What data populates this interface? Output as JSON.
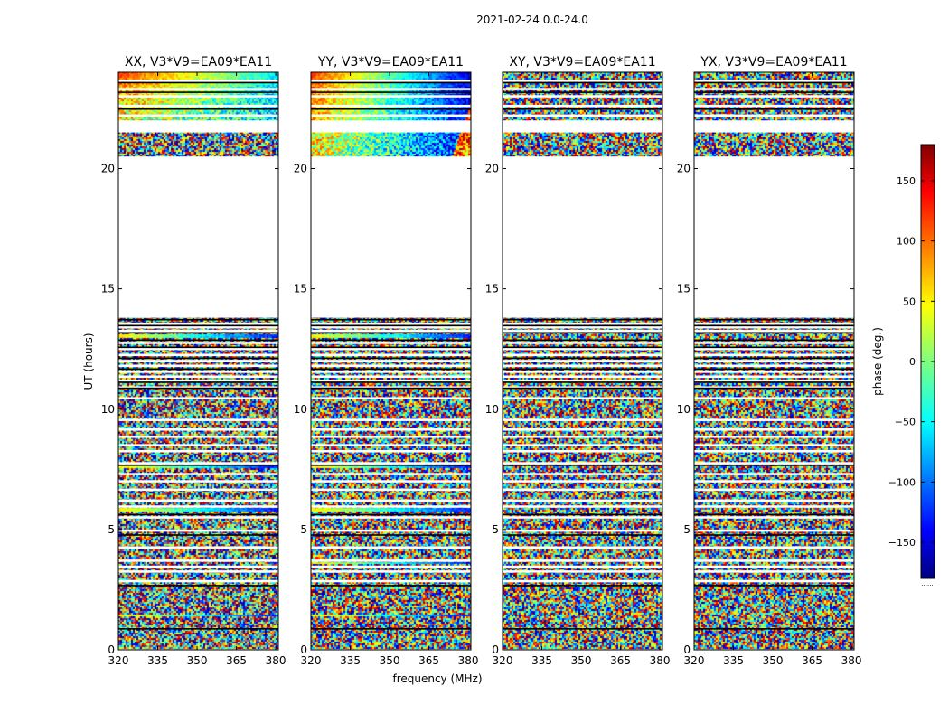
{
  "figure": {
    "suptitle": "2021-02-24 0.0-24.0",
    "colormap": "jet",
    "colorbar": {
      "label": "phase (deg.)",
      "range": [
        -180,
        180
      ],
      "ticks": [
        150,
        100,
        50,
        0,
        -50,
        -100,
        -150
      ],
      "tick_labels": [
        "150",
        "100",
        "50",
        "0",
        "−50",
        "−100",
        "−150"
      ],
      "bottom_note": "......"
    }
  },
  "chart_data": [
    {
      "type": "heatmap",
      "title": "XX, V3*V9=EA09*EA11",
      "xlabel": "",
      "ylabel": "UT (hours)",
      "xlim": [
        320,
        381
      ],
      "ylim": [
        0,
        24
      ],
      "xticks": [
        320,
        335,
        350,
        365,
        380
      ],
      "yticks": [
        0,
        5,
        10,
        15,
        20
      ],
      "value_range": [
        -180,
        180
      ],
      "content": "random phase noise with horizontal flagged (white) gaps; coherent gradient near 21.5-24 h",
      "flagged_hours": [
        [
          13.8,
          20.5
        ],
        [
          21.5,
          22.0
        ],
        [
          0.0,
          0.03
        ]
      ],
      "coherent_rows": [
        [
          1.4,
          1.5
        ],
        [
          5.8,
          5.95
        ],
        [
          7.6,
          7.75
        ],
        [
          13.0,
          13.15
        ]
      ],
      "coherent_region_hours": [
        22.0,
        24.0
      ]
    },
    {
      "type": "heatmap",
      "title": "YY, V3*V9=EA09*EA11",
      "xlabel": "frequency (MHz)",
      "ylabel": "",
      "xlim": [
        320,
        381
      ],
      "ylim": [
        0,
        24
      ],
      "xticks": [
        320,
        335,
        350,
        365,
        380
      ],
      "yticks": [
        0,
        5,
        10,
        15,
        20
      ],
      "value_range": [
        -180,
        180
      ],
      "content": "random phase noise with flagged gaps; strong phase wrap near 20.5-24 h",
      "flagged_hours": [
        [
          13.8,
          20.5
        ],
        [
          21.5,
          22.0
        ],
        [
          0.0,
          0.03
        ]
      ],
      "coherent_rows": [
        [
          1.4,
          1.5
        ],
        [
          3.6,
          3.7
        ],
        [
          5.8,
          5.95
        ],
        [
          7.6,
          7.75
        ],
        [
          13.0,
          13.15
        ]
      ],
      "coherent_region_hours": [
        20.5,
        24.0
      ]
    },
    {
      "type": "heatmap",
      "title": "XY, V3*V9=EA09*EA11",
      "xlabel": "",
      "ylabel": "",
      "xlim": [
        320,
        381
      ],
      "ylim": [
        0,
        24
      ],
      "xticks": [
        320,
        335,
        350,
        365,
        380
      ],
      "yticks": [
        0,
        5,
        10,
        15,
        20
      ],
      "value_range": [
        -180,
        180
      ],
      "content": "random phase noise with flagged gaps",
      "flagged_hours": [
        [
          13.8,
          20.5
        ],
        [
          21.5,
          22.0
        ],
        [
          0.0,
          0.03
        ]
      ],
      "coherent_rows": [],
      "coherent_region_hours": null
    },
    {
      "type": "heatmap",
      "title": "YX, V3*V9=EA09*EA11",
      "xlabel": "",
      "ylabel": "",
      "xlim": [
        320,
        381
      ],
      "ylim": [
        0,
        24
      ],
      "xticks": [
        320,
        335,
        350,
        365,
        380
      ],
      "yticks": [
        0,
        5,
        10,
        15,
        20
      ],
      "value_range": [
        -180,
        180
      ],
      "content": "random phase noise with flagged gaps",
      "flagged_hours": [
        [
          13.8,
          20.5
        ],
        [
          21.5,
          22.0
        ],
        [
          0.0,
          0.03
        ]
      ],
      "coherent_rows": [],
      "coherent_region_hours": null
    }
  ],
  "thin_gap_hours": [
    2.9,
    3.3,
    3.5,
    3.75,
    4.3,
    5.0,
    5.55,
    6.0,
    6.25,
    6.7,
    7.05,
    7.35,
    7.8,
    8.3,
    8.55,
    8.9,
    9.2,
    9.6,
    10.5,
    10.95,
    11.2,
    11.4,
    11.6,
    11.85,
    12.05,
    12.3,
    12.55,
    12.8,
    13.3,
    13.45,
    13.6,
    22.25,
    22.65,
    23.05,
    23.35,
    23.7
  ],
  "black_line_hours": [
    0.9,
    2.7,
    4.8,
    5.65,
    7.7,
    10.9,
    11.15,
    11.7,
    12.15,
    12.6,
    12.9,
    13.2,
    13.5,
    13.75,
    22.5,
    23.2,
    23.6
  ]
}
